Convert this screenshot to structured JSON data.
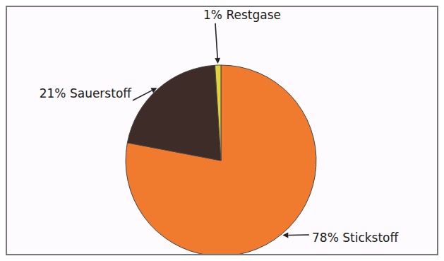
{
  "chart_data": {
    "type": "pie",
    "categories": [
      "Stickstoff",
      "Sauerstoff",
      "Restgase"
    ],
    "values": [
      78,
      21,
      1
    ],
    "value_labels": [
      "78%",
      "21%",
      "1%"
    ],
    "colors": [
      "#f07a2e",
      "#3d2c28",
      "#e2d23c"
    ],
    "data_labels": true
  }
}
